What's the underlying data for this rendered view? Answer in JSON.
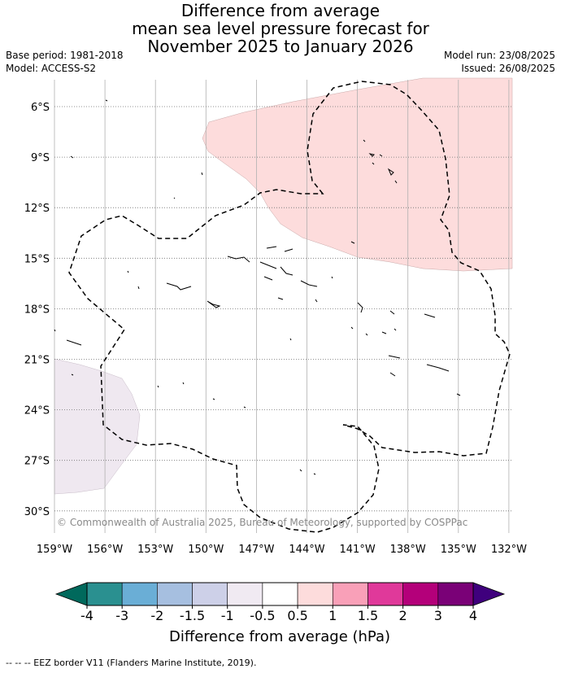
{
  "title": {
    "line1": "Difference from average",
    "line2": "mean sea level pressure forecast for",
    "line3": "November 2025 to January 2026"
  },
  "meta": {
    "base_period": "Base period: 1981-2018",
    "model": "Model: ACCESS-S2",
    "model_run": "Model run: 23/08/2025",
    "issued": "Issued: 26/08/2025"
  },
  "map": {
    "lon_labels": [
      "159°W",
      "156°W",
      "153°W",
      "150°W",
      "147°W",
      "144°W",
      "141°W",
      "138°W",
      "135°W",
      "132°W"
    ],
    "lat_labels": [
      "6°S",
      "9°S",
      "12°S",
      "15°S",
      "18°S",
      "21°S",
      "24°S",
      "27°S",
      "30°S"
    ],
    "copyright": "© Commonwealth of Australia 2025, Bureau of Meteorology, supported by COSPPac",
    "positive_anomaly_color": "#fddcdc",
    "negative_anomaly_color": "#efe8f0"
  },
  "colorbar": {
    "labels": [
      "-4",
      "-3",
      "-2",
      "-1.5",
      "-1",
      "-0.5",
      "0.5",
      "1",
      "1.5",
      "2",
      "3",
      "4"
    ],
    "colors": [
      "#2a9090",
      "#6aaed6",
      "#a6bfe0",
      "#cdd0e8",
      "#f0eaf2",
      "#ffffff",
      "#fddcdc",
      "#f9a0b8",
      "#e0399a",
      "#b4007a",
      "#7a0177"
    ],
    "under_color": "#00695c",
    "over_color": "#3f007d",
    "label": "Difference from average (hPa)"
  },
  "footer": {
    "legend": "-- -- -- EEZ border V11 (Flanders Marine Institute, 2019)."
  }
}
